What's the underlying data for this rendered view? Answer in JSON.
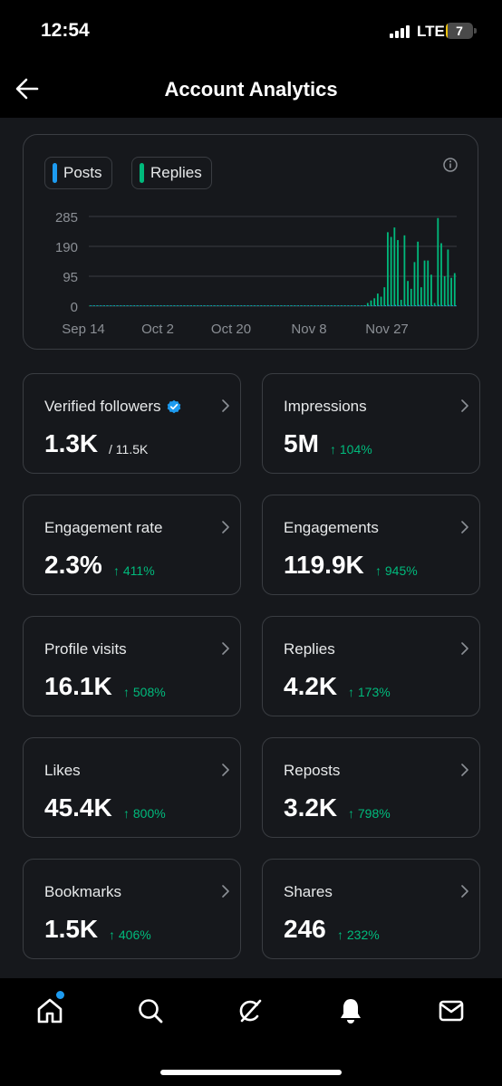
{
  "status_bar": {
    "time": "12:54",
    "network": "LTE",
    "battery": "7",
    "battery_level": 0.07
  },
  "header": {
    "title": "Account Analytics",
    "back_icon": "arrow-left-icon"
  },
  "chart_data": {
    "type": "bar",
    "legend": [
      "Posts",
      "Replies"
    ],
    "legend_colors": [
      "#1d9bf0",
      "#00ba7c"
    ],
    "x_ticks": [
      "Sep 14",
      "Oct 2",
      "Oct 20",
      "Nov 8",
      "Nov 27"
    ],
    "y_ticks": [
      "285",
      "190",
      "95",
      "0"
    ],
    "ylim": [
      0,
      285
    ],
    "grid": true,
    "series": [
      {
        "name": "Replies",
        "color": "#00ba7c",
        "values": [
          1,
          0,
          1,
          0,
          0,
          1,
          0,
          0,
          1,
          0,
          0,
          1,
          0,
          0,
          0,
          1,
          0,
          0,
          1,
          0,
          0,
          0,
          1,
          0,
          0,
          1,
          0,
          0,
          0,
          1,
          0,
          0,
          1,
          0,
          0,
          0,
          1,
          0,
          0,
          0,
          1,
          0,
          0,
          1,
          0,
          0,
          0,
          1,
          0,
          0,
          1,
          0,
          0,
          0,
          1,
          0,
          0,
          1,
          0,
          0,
          0,
          1,
          0,
          0,
          1,
          0,
          0,
          0,
          1,
          0,
          0,
          1,
          0,
          0,
          0,
          1,
          0,
          1,
          0,
          0,
          1,
          2,
          3,
          10,
          18,
          25,
          40,
          30,
          60,
          235,
          220,
          250,
          210,
          20,
          225,
          80,
          55,
          140,
          205,
          60,
          145,
          145,
          100,
          10,
          280,
          200,
          95,
          180,
          90,
          105
        ]
      },
      {
        "name": "Posts",
        "color": "#1d9bf0",
        "values": [
          0,
          1,
          0,
          0,
          1,
          0,
          0,
          1,
          0,
          0,
          1,
          0,
          0,
          1,
          0,
          0,
          0,
          1,
          0,
          0,
          1,
          0,
          0,
          1,
          0,
          0,
          0,
          1,
          0,
          0,
          1,
          0,
          0,
          0,
          1,
          0,
          0,
          1,
          0,
          0,
          0,
          1,
          0,
          0,
          1,
          0,
          0,
          0,
          1,
          0,
          0,
          1,
          0,
          0,
          0,
          1,
          0,
          0,
          1,
          0,
          0,
          0,
          1,
          0,
          0,
          1,
          0,
          0,
          0,
          1,
          0,
          0,
          1,
          0,
          0,
          1,
          0,
          0,
          1,
          0,
          0,
          1,
          1,
          2,
          2,
          3,
          3,
          2,
          3,
          4,
          3,
          4,
          3,
          2,
          4,
          3,
          2,
          3,
          4,
          3,
          4,
          3,
          3,
          2,
          4,
          3,
          3,
          4,
          3,
          3
        ]
      }
    ]
  },
  "metrics": [
    {
      "label": "Verified followers",
      "value": "1.3K",
      "sub": "/ 11.5K",
      "change": ""
    },
    {
      "label": "Impressions",
      "value": "5M",
      "sub": "",
      "change": "↑ 104%"
    },
    {
      "label": "Engagement rate",
      "value": "2.3%",
      "sub": "",
      "change": "↑ 411%"
    },
    {
      "label": "Engagements",
      "value": "119.9K",
      "sub": "",
      "change": "↑ 945%"
    },
    {
      "label": "Profile visits",
      "value": "16.1K",
      "sub": "",
      "change": "↑ 508%"
    },
    {
      "label": "Replies",
      "value": "4.2K",
      "sub": "",
      "change": "↑ 173%"
    },
    {
      "label": "Likes",
      "value": "45.4K",
      "sub": "",
      "change": "↑ 800%"
    },
    {
      "label": "Reposts",
      "value": "3.2K",
      "sub": "",
      "change": "↑ 798%"
    },
    {
      "label": "Bookmarks",
      "value": "1.5K",
      "sub": "",
      "change": "↑ 406%"
    },
    {
      "label": "Shares",
      "value": "246",
      "sub": "",
      "change": "↑ 232%"
    }
  ],
  "tab_bar": {
    "items": [
      "home-icon",
      "search-icon",
      "grok-icon",
      "notifications-icon",
      "messages-icon"
    ],
    "active": "home-icon"
  },
  "colors": {
    "accent": "#1d9bf0",
    "positive": "#00ba7c",
    "card_border": "#3a3d42",
    "background": "#16181c"
  }
}
